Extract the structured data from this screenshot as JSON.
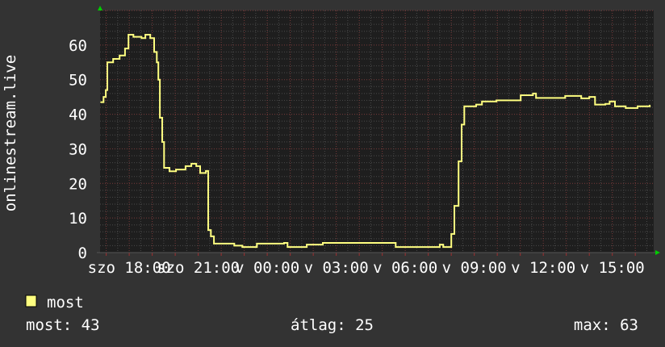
{
  "chart_data": {
    "type": "line",
    "ylabel": "onlinestream.live",
    "xlabel": "",
    "ylim": [
      0,
      70
    ],
    "yticks": [
      0,
      10,
      20,
      30,
      40,
      50,
      60
    ],
    "xlim": [
      "szo 16:44",
      "v 16:48"
    ],
    "xticks": [
      "szo 18:00",
      "szo 21:00",
      "v 00:00",
      "v 03:00",
      "v 06:00",
      "v 09:00",
      "v 12:00",
      "v 15:00"
    ],
    "grid": true,
    "legend_position": "bottom-left",
    "series": [
      {
        "name": "most",
        "color": "#ffff80",
        "points": [
          [
            "szo 16:46",
            43.5
          ],
          [
            "szo 16:53",
            45
          ],
          [
            "szo 16:59",
            47
          ],
          [
            "szo 17:03",
            55
          ],
          [
            "szo 17:12",
            55
          ],
          [
            "szo 17:18",
            56
          ],
          [
            "szo 17:28",
            56
          ],
          [
            "szo 17:35",
            57
          ],
          [
            "szo 17:45",
            57
          ],
          [
            "szo 17:49",
            59
          ],
          [
            "szo 17:58",
            63
          ],
          [
            "szo 18:11",
            62.4
          ],
          [
            "szo 18:32",
            62
          ],
          [
            "szo 18:42",
            63
          ],
          [
            "szo 18:55",
            62
          ],
          [
            "szo 19:01",
            62
          ],
          [
            "szo 19:05",
            58
          ],
          [
            "szo 19:12",
            55
          ],
          [
            "szo 19:16",
            50
          ],
          [
            "szo 19:20",
            39
          ],
          [
            "szo 19:26",
            32
          ],
          [
            "szo 19:31",
            24.5
          ],
          [
            "szo 19:45",
            23.5
          ],
          [
            "szo 20:02",
            24
          ],
          [
            "szo 20:27",
            25
          ],
          [
            "szo 20:42",
            25.7
          ],
          [
            "szo 20:55",
            25
          ],
          [
            "szo 21:05",
            23
          ],
          [
            "szo 21:20",
            23.6
          ],
          [
            "szo 21:26",
            6.5
          ],
          [
            "szo 21:33",
            4.7
          ],
          [
            "szo 21:41",
            2.6
          ],
          [
            "szo 22:13",
            2.6
          ],
          [
            "szo 22:34",
            2
          ],
          [
            "szo 22:55",
            1.6
          ],
          [
            "szo 23:33",
            2.6
          ],
          [
            "v 00:29",
            2.6
          ],
          [
            "v 00:44",
            2.8
          ],
          [
            "v 00:53",
            1.6
          ],
          [
            "v 01:43",
            2.3
          ],
          [
            "v 02:25",
            2.8
          ],
          [
            "v 05:26",
            2.8
          ],
          [
            "v 05:35",
            1.6
          ],
          [
            "v 07:20",
            1.6
          ],
          [
            "v 07:30",
            2.3
          ],
          [
            "v 07:39",
            1.6
          ],
          [
            "v 07:54",
            1.6
          ],
          [
            "v 08:00",
            5.4
          ],
          [
            "v 08:08",
            13.5
          ],
          [
            "v 08:19",
            26.4
          ],
          [
            "v 08:27",
            37
          ],
          [
            "v 08:34",
            42.3
          ],
          [
            "v 09:05",
            42.8
          ],
          [
            "v 09:20",
            43.7
          ],
          [
            "v 09:58",
            44
          ],
          [
            "v 10:50",
            44
          ],
          [
            "v 11:01",
            45.5
          ],
          [
            "v 11:33",
            46
          ],
          [
            "v 11:41",
            44.7
          ],
          [
            "v 12:57",
            45.3
          ],
          [
            "v 13:39",
            44.6
          ],
          [
            "v 14:00",
            45
          ],
          [
            "v 14:15",
            42.8
          ],
          [
            "v 14:42",
            43
          ],
          [
            "v 14:53",
            43.7
          ],
          [
            "v 15:07",
            42.3
          ],
          [
            "v 15:35",
            41.8
          ],
          [
            "v 16:06",
            42.3
          ],
          [
            "v 16:38",
            42.5
          ]
        ]
      }
    ]
  },
  "legend": {
    "label": "most",
    "color": "#ffff80"
  },
  "stats": {
    "current": "most: 43",
    "average": "átlag: 25",
    "max": "max: 63"
  },
  "colors": {
    "background": "#333333",
    "plot_background": "#1e1e1e",
    "grid_minor": "#4a4a4a",
    "grid_major": "#7a3a3a",
    "axis_arrow": "#00cc00"
  }
}
